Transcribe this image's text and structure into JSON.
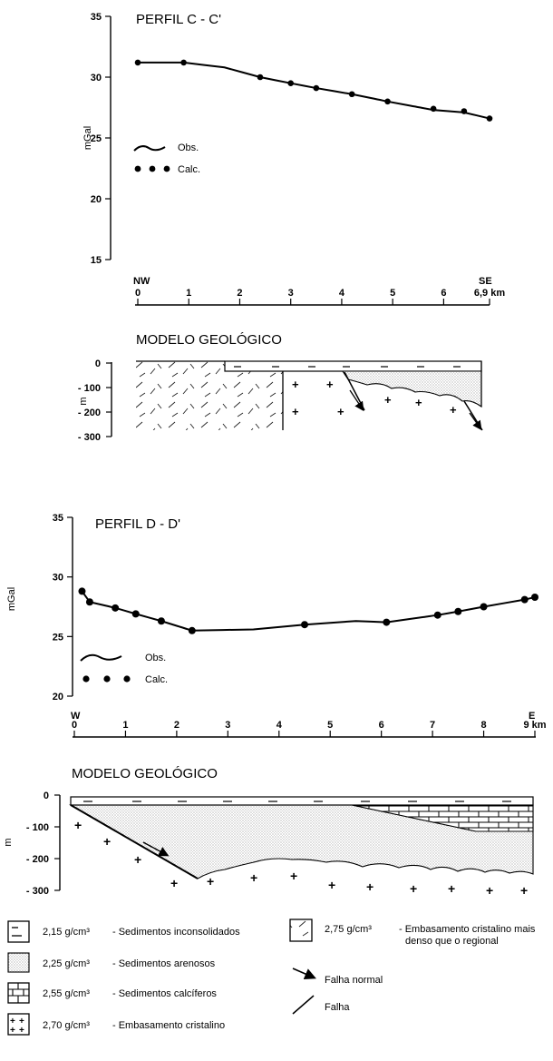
{
  "chart_data": [
    {
      "type": "line",
      "title": "PERFIL  C - C'",
      "ylabel": "mGal",
      "yticks": [
        "35",
        "30",
        "25",
        "20",
        "15"
      ],
      "ylim": [
        15,
        35
      ],
      "xlim": [
        0,
        6.9
      ],
      "xticks": [
        "0",
        "1",
        "2",
        "3",
        "4",
        "5",
        "6",
        "6,9 km"
      ],
      "x_end_labels": [
        "NW",
        "SE"
      ],
      "legend": {
        "obs": "Obs.",
        "calc": "Calc."
      },
      "legend_position": "left",
      "series": [
        {
          "name": "Obs.",
          "points": [
            [
              0.0,
              31.2
            ],
            [
              0.9,
              31.2
            ],
            [
              1.7,
              30.8
            ],
            [
              2.4,
              30.0
            ],
            [
              3.0,
              29.5
            ],
            [
              3.5,
              29.1
            ],
            [
              4.2,
              28.6
            ],
            [
              4.9,
              28.0
            ],
            [
              5.8,
              27.3
            ],
            [
              6.4,
              27.1
            ],
            [
              6.9,
              26.6
            ]
          ]
        },
        {
          "name": "Calc.",
          "points": [
            [
              0.0,
              31.2
            ],
            [
              0.9,
              31.2
            ],
            [
              2.4,
              30.0
            ],
            [
              3.0,
              29.5
            ],
            [
              3.5,
              29.1
            ],
            [
              4.2,
              28.6
            ],
            [
              4.9,
              28.0
            ],
            [
              5.8,
              27.4
            ],
            [
              6.4,
              27.2
            ],
            [
              6.9,
              26.6
            ]
          ]
        }
      ]
    },
    {
      "type": "line",
      "title": "PERFIL  D - D'",
      "ylabel": "mGal",
      "yticks": [
        "35",
        "30",
        "25",
        "20"
      ],
      "ylim": [
        20,
        35
      ],
      "xlim": [
        0,
        9
      ],
      "xticks": [
        "0",
        "1",
        "2",
        "3",
        "4",
        "5",
        "6",
        "7",
        "8",
        "9 km"
      ],
      "x_end_labels": [
        "W",
        "E"
      ],
      "legend": {
        "obs": "Obs.",
        "calc": "Calc."
      },
      "legend_position": "left",
      "series": [
        {
          "name": "Obs.",
          "points": [
            [
              0.15,
              28.8
            ],
            [
              0.3,
              27.9
            ],
            [
              0.8,
              27.4
            ],
            [
              1.2,
              26.9
            ],
            [
              1.7,
              26.3
            ],
            [
              2.3,
              25.5
            ],
            [
              3.5,
              25.6
            ],
            [
              4.5,
              26.0
            ],
            [
              5.5,
              26.3
            ],
            [
              6.1,
              26.2
            ],
            [
              7.1,
              26.8
            ],
            [
              7.5,
              27.1
            ],
            [
              8.0,
              27.5
            ],
            [
              8.8,
              28.1
            ],
            [
              9.0,
              28.3
            ]
          ]
        },
        {
          "name": "Calc.",
          "points": [
            [
              0.15,
              28.8
            ],
            [
              0.3,
              27.9
            ],
            [
              0.8,
              27.4
            ],
            [
              1.2,
              26.9
            ],
            [
              1.7,
              26.3
            ],
            [
              2.3,
              25.5
            ],
            [
              4.5,
              26.0
            ],
            [
              6.1,
              26.2
            ],
            [
              7.1,
              26.8
            ],
            [
              7.5,
              27.1
            ],
            [
              8.0,
              27.5
            ],
            [
              8.8,
              28.1
            ],
            [
              9.0,
              28.3
            ]
          ]
        }
      ]
    }
  ],
  "model_c": {
    "title": "MODELO GEOLÓGICO",
    "unit": "m",
    "yticks": [
      "0",
      "- 100",
      "- 200",
      "- 300"
    ]
  },
  "model_d": {
    "title": "MODELO GEOLÓGICO",
    "unit": "m",
    "yticks": [
      "0",
      "- 100",
      "- 200",
      "- 300"
    ]
  },
  "legend": {
    "items": [
      {
        "density": "2,15 g/cm³",
        "desc": "- Sedimentos inconsolidados"
      },
      {
        "density": "2,25 g/cm³",
        "desc": "- Sedimentos arenosos"
      },
      {
        "density": "2,55 g/cm³",
        "desc": "- Sedimentos calcíferos"
      },
      {
        "density": "2,70 g/cm³",
        "desc": "- Embasamento cristalino"
      },
      {
        "density": "2,75 g/cm³",
        "desc": "- Embasamento cristalino mais",
        "desc2": "denso que o regional"
      }
    ],
    "fault_normal": "Falha normal",
    "fault": "Falha"
  }
}
